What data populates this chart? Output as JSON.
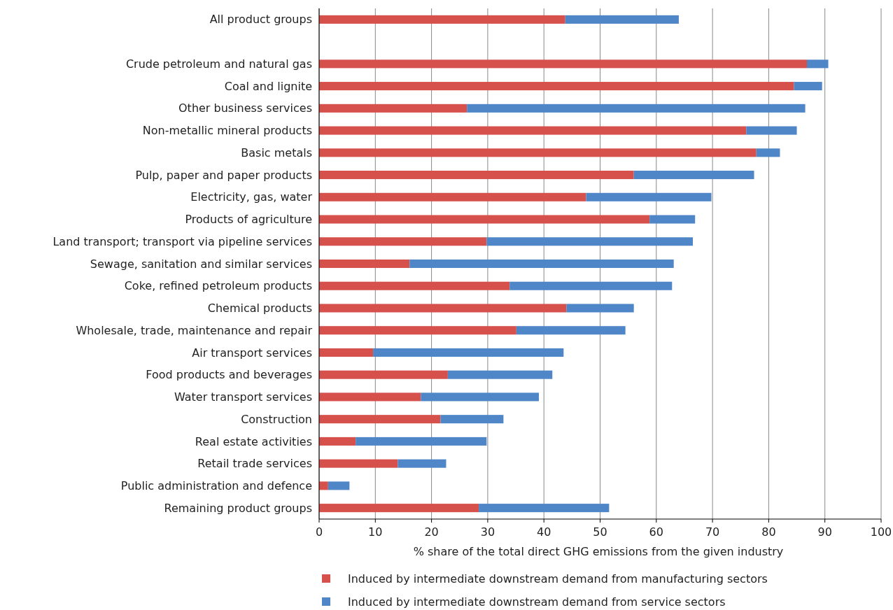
{
  "chart_data": {
    "type": "bar",
    "orientation": "horizontal",
    "stacked": true,
    "xlabel": "% share of the total direct GHG emissions from the given industry",
    "categories": [
      "All product groups",
      null,
      "Crude petroleum and natural gas",
      "Coal and lignite",
      "Other business services",
      "Non-metallic mineral products",
      "Basic metals",
      "Pulp, paper and paper products",
      "Electricity, gas, water",
      "Products of agriculture",
      "Land transport; transport via pipeline services",
      "Sewage, sanitation and similar services",
      "Coke, refined petroleum products",
      "Chemical products",
      "Wholesale, trade, maintenance and repair",
      "Air transport services",
      "Food products and beverages",
      "Water transport services",
      "Construction",
      "Real estate activities",
      "Retail trade services",
      "Public administration and defence",
      "Remaining product groups"
    ],
    "series": [
      {
        "name": "Induced by intermediate downstream demand from manufacturing sectors",
        "color": "#d6504c",
        "values": [
          43.8,
          null,
          86.8,
          84.5,
          26.3,
          76,
          77.8,
          56,
          47.5,
          58.8,
          29.8,
          16.1,
          33.9,
          44,
          35.1,
          9.6,
          22.9,
          18.1,
          21.6,
          6.5,
          14,
          1.6,
          28.4
        ]
      },
      {
        "name": "Induced by intermediate downstream demand from service sectors",
        "color": "#4f86c8",
        "values": [
          20.2,
          null,
          3.8,
          5,
          60.2,
          9,
          4.2,
          21.4,
          22.3,
          8.1,
          36.7,
          47,
          28.9,
          12,
          19.4,
          33.9,
          18.6,
          21,
          11.2,
          23.3,
          8.6,
          3.8,
          23.2
        ]
      }
    ],
    "xlim": [
      0,
      100
    ],
    "xticks": [
      0,
      10,
      20,
      30,
      40,
      50,
      60,
      70,
      80,
      90,
      100
    ],
    "grid": "x",
    "legend": "bottom"
  }
}
